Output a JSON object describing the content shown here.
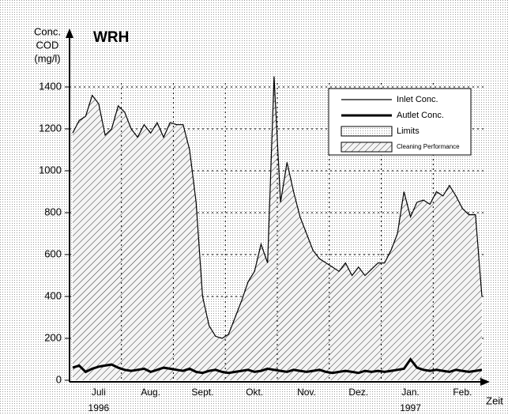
{
  "chart_data": {
    "type": "area",
    "title": "WRH",
    "y_label": [
      "Conc.",
      "COD",
      "(mg/l)"
    ],
    "x_label": "Zeit",
    "years": [
      "1996",
      "1997"
    ],
    "categories": [
      null,
      null,
      null,
      null,
      "Juli",
      null,
      null,
      null,
      null,
      null,
      null,
      null,
      "Aug.",
      null,
      null,
      null,
      null,
      null,
      null,
      null,
      "Sept.",
      null,
      null,
      null,
      null,
      null,
      null,
      null,
      "Okt.",
      null,
      null,
      null,
      null,
      null,
      null,
      null,
      "Nov.",
      null,
      null,
      null,
      null,
      null,
      null,
      null,
      "Dez.",
      null,
      null,
      null,
      null,
      null,
      null,
      null,
      "Jan.",
      null,
      null,
      null,
      null,
      null,
      null,
      null,
      "Feb.",
      null,
      null,
      null
    ],
    "series": [
      {
        "name": "Inlet Conc.",
        "color": "#000000",
        "values": [
          1180,
          1240,
          1260,
          1360,
          1320,
          1170,
          1200,
          1310,
          1280,
          1200,
          1160,
          1220,
          1180,
          1230,
          1160,
          1230,
          1220,
          1220,
          1100,
          850,
          400,
          260,
          210,
          200,
          220,
          300,
          380,
          470,
          520,
          650,
          560,
          1450,
          850,
          1040,
          900,
          780,
          700,
          620,
          580,
          560,
          540,
          520,
          560,
          500,
          540,
          500,
          530,
          560,
          560,
          620,
          700,
          900,
          780,
          850,
          860,
          840,
          900,
          880,
          930,
          880,
          820,
          790,
          790,
          400
        ]
      },
      {
        "name": "Autlet Conc.",
        "color": "#000000",
        "values": [
          60,
          70,
          40,
          55,
          65,
          70,
          75,
          60,
          50,
          45,
          50,
          55,
          40,
          50,
          60,
          55,
          50,
          45,
          55,
          40,
          35,
          45,
          50,
          40,
          35,
          40,
          45,
          50,
          40,
          45,
          55,
          50,
          45,
          40,
          50,
          45,
          40,
          45,
          50,
          40,
          35,
          40,
          45,
          40,
          35,
          45,
          40,
          45,
          40,
          45,
          50,
          55,
          100,
          60,
          50,
          45,
          50,
          45,
          40,
          50,
          45,
          40,
          45,
          50
        ]
      }
    ],
    "legend": [
      "Inlet Conc.",
      "Autlet Conc.",
      "Limits",
      "Cleaning Performance"
    ],
    "ylim": [
      0,
      1500
    ],
    "yticks": [
      0,
      200,
      400,
      600,
      800,
      1000,
      1200,
      1400
    ],
    "grid": true
  }
}
